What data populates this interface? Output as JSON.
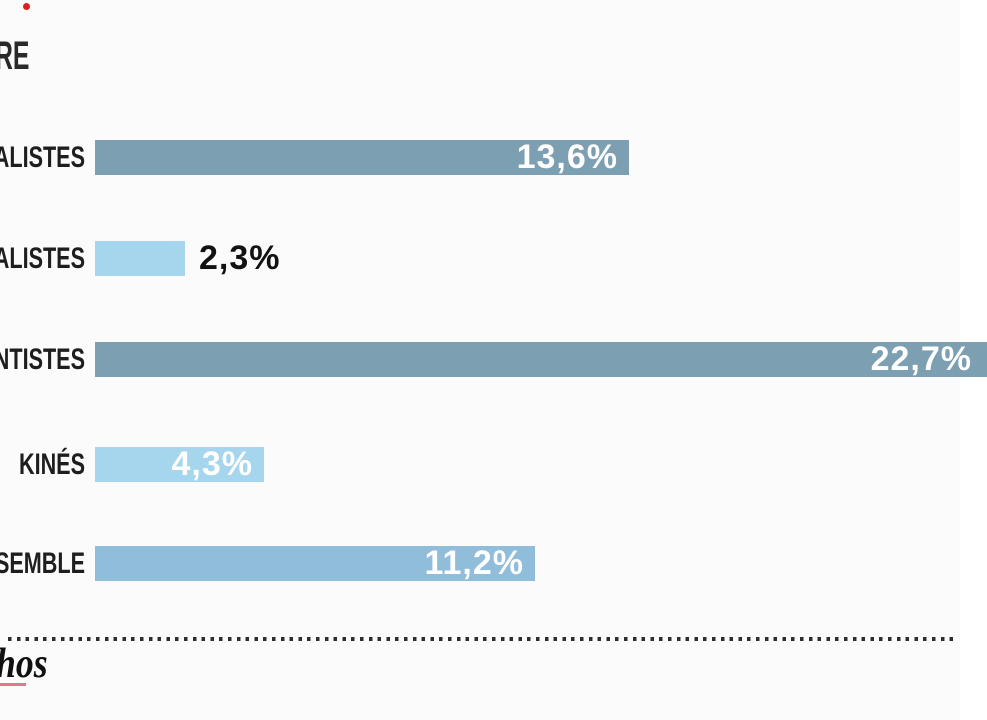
{
  "page": {
    "background_color": "#fbfbfb"
  },
  "header": {
    "title_fragment": "RE",
    "record_dot_color": "#de1f1f"
  },
  "chart_data": {
    "type": "bar",
    "orientation": "horizontal",
    "note": "left edge of frame crops the chart title and category labels",
    "categories": [
      "ALISTES",
      "ALISTES",
      "NTISTES",
      "KINÉS",
      "SEMBLE"
    ],
    "values": [
      13.6,
      2.3,
      22.7,
      4.3,
      11.2
    ],
    "value_labels": [
      "13,6%",
      "2,3%",
      "22,7%",
      "4,3%",
      "11,2%"
    ],
    "bar_colors": [
      "#7d9fb2",
      "#a6d5ee",
      "#7d9fb2",
      "#a6d5ee",
      "#90bdd9"
    ],
    "value_placements": [
      "inside",
      "outside",
      "edge",
      "inside",
      "inside"
    ],
    "value_colors": [
      "#ffffff",
      "#121212",
      "#ffffff",
      "#ffffff",
      "#ffffff"
    ],
    "xlim": [
      0,
      24.6
    ],
    "grid": false,
    "legend": false
  },
  "footer": {
    "divider_style": "dotted",
    "divider_color": "#2d2d2d",
    "logo_fragment": "hos",
    "logo_underline_color": "#e2798a"
  }
}
